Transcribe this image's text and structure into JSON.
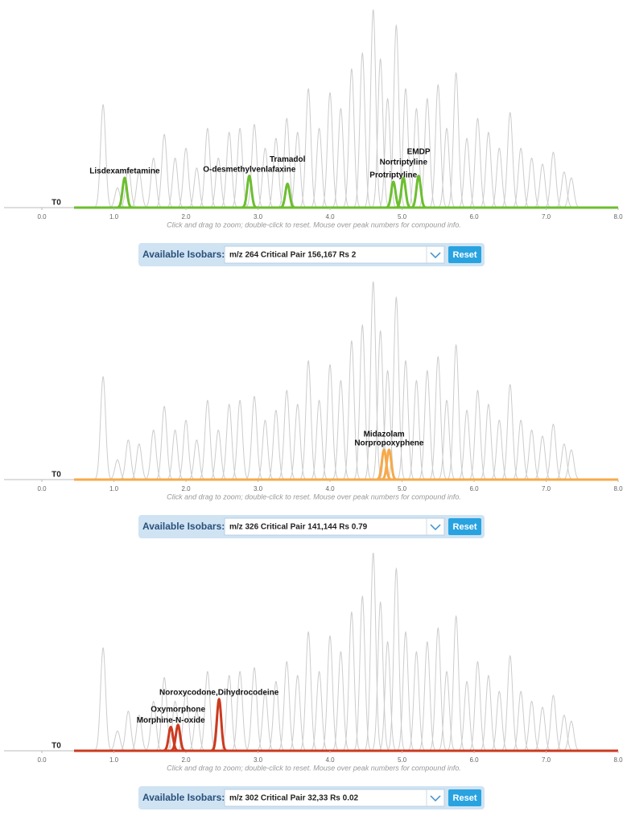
{
  "chart_data": [
    {
      "type": "chromatogram",
      "t0_label": "T0",
      "xlim": [
        0,
        8
      ],
      "ylim": [
        0,
        100
      ],
      "xticks": [
        {
          "value": 0,
          "label": "0.0"
        },
        {
          "value": 1,
          "label": "1.0"
        },
        {
          "value": 2,
          "label": "2.0"
        },
        {
          "value": 3,
          "label": "3.0"
        },
        {
          "value": 4,
          "label": "4.0"
        },
        {
          "value": 5,
          "label": "5.0"
        },
        {
          "value": 6,
          "label": "6.0"
        },
        {
          "value": 7,
          "label": "7.0"
        },
        {
          "value": 8,
          "label": "8.0"
        }
      ],
      "note": "Click and drag to zoom; double-click to reset. Mouse over peak numbers for compound info.",
      "background": {
        "color": "#cccccc",
        "x": [
          0.85,
          1.05,
          1.2,
          1.35,
          1.55,
          1.7,
          1.85,
          2.0,
          2.15,
          2.3,
          2.45,
          2.6,
          2.75,
          2.95,
          3.1,
          3.25,
          3.4,
          3.55,
          3.7,
          3.85,
          4.0,
          4.15,
          4.3,
          4.45,
          4.6,
          4.7,
          4.8,
          4.92,
          5.05,
          5.2,
          5.35,
          5.5,
          5.62,
          5.75,
          5.9,
          6.05,
          6.2,
          6.35,
          6.5,
          6.65,
          6.8,
          6.95,
          7.1,
          7.25,
          7.35
        ],
        "values": [
          52,
          10,
          20,
          18,
          25,
          37,
          25,
          30,
          20,
          40,
          25,
          38,
          40,
          42,
          30,
          35,
          45,
          38,
          60,
          40,
          58,
          50,
          70,
          78,
          100,
          75,
          55,
          92,
          60,
          50,
          55,
          62,
          40,
          68,
          35,
          45,
          38,
          30,
          48,
          30,
          25,
          22,
          28,
          18,
          15
        ]
      },
      "color": "#6cbe2f",
      "peaks": [
        {
          "label": "Lisdexamfetamine",
          "x": 1.15,
          "value": 15
        },
        {
          "label": "O-desmethylvenlafaxine",
          "x": 2.88,
          "value": 16
        },
        {
          "label": "Tramadol",
          "x": 3.41,
          "value": 12
        },
        {
          "label": "Protriptyline",
          "x": 4.88,
          "value": 13
        },
        {
          "label": "Nortriptyline",
          "x": 5.02,
          "value": 15
        },
        {
          "label": "EMDP",
          "x": 5.23,
          "value": 16
        }
      ],
      "isobar_label": "Available Isobars:",
      "isobar_selection": "m/z 264  Critical Pair 156,167  Rs 2",
      "reset": "Reset"
    },
    {
      "type": "chromatogram",
      "t0_label": "T0",
      "xlim": [
        0,
        8
      ],
      "ylim": [
        0,
        100
      ],
      "xticks": [
        {
          "value": 0,
          "label": "0.0"
        },
        {
          "value": 1,
          "label": "1.0"
        },
        {
          "value": 2,
          "label": "2.0"
        },
        {
          "value": 3,
          "label": "3.0"
        },
        {
          "value": 4,
          "label": "4.0"
        },
        {
          "value": 5,
          "label": "5.0"
        },
        {
          "value": 6,
          "label": "6.0"
        },
        {
          "value": 7,
          "label": "7.0"
        },
        {
          "value": 8,
          "label": "8.0"
        }
      ],
      "note": "Click and drag to zoom; double-click to reset. Mouse over peak numbers for compound info.",
      "background": {
        "color": "#cccccc",
        "x": [
          0.85,
          1.05,
          1.2,
          1.35,
          1.55,
          1.7,
          1.85,
          2.0,
          2.15,
          2.3,
          2.45,
          2.6,
          2.75,
          2.95,
          3.1,
          3.25,
          3.4,
          3.55,
          3.7,
          3.85,
          4.0,
          4.15,
          4.3,
          4.45,
          4.6,
          4.7,
          4.8,
          4.92,
          5.05,
          5.2,
          5.35,
          5.5,
          5.62,
          5.75,
          5.9,
          6.05,
          6.2,
          6.35,
          6.5,
          6.65,
          6.8,
          6.95,
          7.1,
          7.25,
          7.35
        ],
        "values": [
          52,
          10,
          20,
          18,
          25,
          37,
          25,
          30,
          20,
          40,
          25,
          38,
          40,
          42,
          30,
          35,
          45,
          38,
          60,
          40,
          58,
          50,
          70,
          78,
          100,
          75,
          55,
          92,
          60,
          50,
          55,
          62,
          40,
          68,
          35,
          45,
          38,
          30,
          48,
          30,
          25,
          22,
          28,
          18,
          15
        ]
      },
      "color": "#f7a94a",
      "peaks": [
        {
          "label": "Norpropoxyphene",
          "x": 4.82,
          "value": 15
        },
        {
          "label": "Midazolam",
          "x": 4.75,
          "value": 15
        }
      ],
      "isobar_label": "Available Isobars:",
      "isobar_selection": "m/z 326  Critical Pair 141,144  Rs 0.79",
      "reset": "Reset"
    },
    {
      "type": "chromatogram",
      "t0_label": "T0",
      "xlim": [
        0,
        8
      ],
      "ylim": [
        0,
        100
      ],
      "xticks": [
        {
          "value": 0,
          "label": "0.0"
        },
        {
          "value": 1,
          "label": "1.0"
        },
        {
          "value": 2,
          "label": "2.0"
        },
        {
          "value": 3,
          "label": "3.0"
        },
        {
          "value": 4,
          "label": "4.0"
        },
        {
          "value": 5,
          "label": "5.0"
        },
        {
          "value": 6,
          "label": "6.0"
        },
        {
          "value": 7,
          "label": "7.0"
        },
        {
          "value": 8,
          "label": "8.0"
        }
      ],
      "note": "Click and drag to zoom; double-click to reset. Mouse over peak numbers for compound info.",
      "background": {
        "color": "#cccccc",
        "x": [
          0.85,
          1.05,
          1.2,
          1.35,
          1.55,
          1.7,
          1.85,
          2.0,
          2.15,
          2.3,
          2.45,
          2.6,
          2.75,
          2.95,
          3.1,
          3.25,
          3.4,
          3.55,
          3.7,
          3.85,
          4.0,
          4.15,
          4.3,
          4.45,
          4.6,
          4.7,
          4.8,
          4.92,
          5.05,
          5.2,
          5.35,
          5.5,
          5.62,
          5.75,
          5.9,
          6.05,
          6.2,
          6.35,
          6.5,
          6.65,
          6.8,
          6.95,
          7.1,
          7.25,
          7.35
        ],
        "values": [
          52,
          10,
          20,
          18,
          25,
          37,
          25,
          30,
          20,
          40,
          25,
          38,
          40,
          42,
          30,
          35,
          45,
          38,
          60,
          40,
          58,
          50,
          70,
          78,
          100,
          75,
          55,
          92,
          60,
          50,
          55,
          62,
          40,
          68,
          35,
          45,
          38,
          30,
          48,
          30,
          25,
          22,
          28,
          18,
          15
        ]
      },
      "color": "#cc3a1f",
      "peaks": [
        {
          "label": "Noroxycodone,Dihydrocodeine",
          "x": 2.46,
          "value": 26
        },
        {
          "label": "Morphine-N-oxide",
          "x": 1.79,
          "value": 12
        },
        {
          "label": "Oxymorphone",
          "x": 1.89,
          "value": 13
        }
      ],
      "isobar_label": "Available Isobars:",
      "isobar_selection": "m/z 302  Critical Pair 32,33  Rs 0.02",
      "reset": "Reset"
    }
  ]
}
